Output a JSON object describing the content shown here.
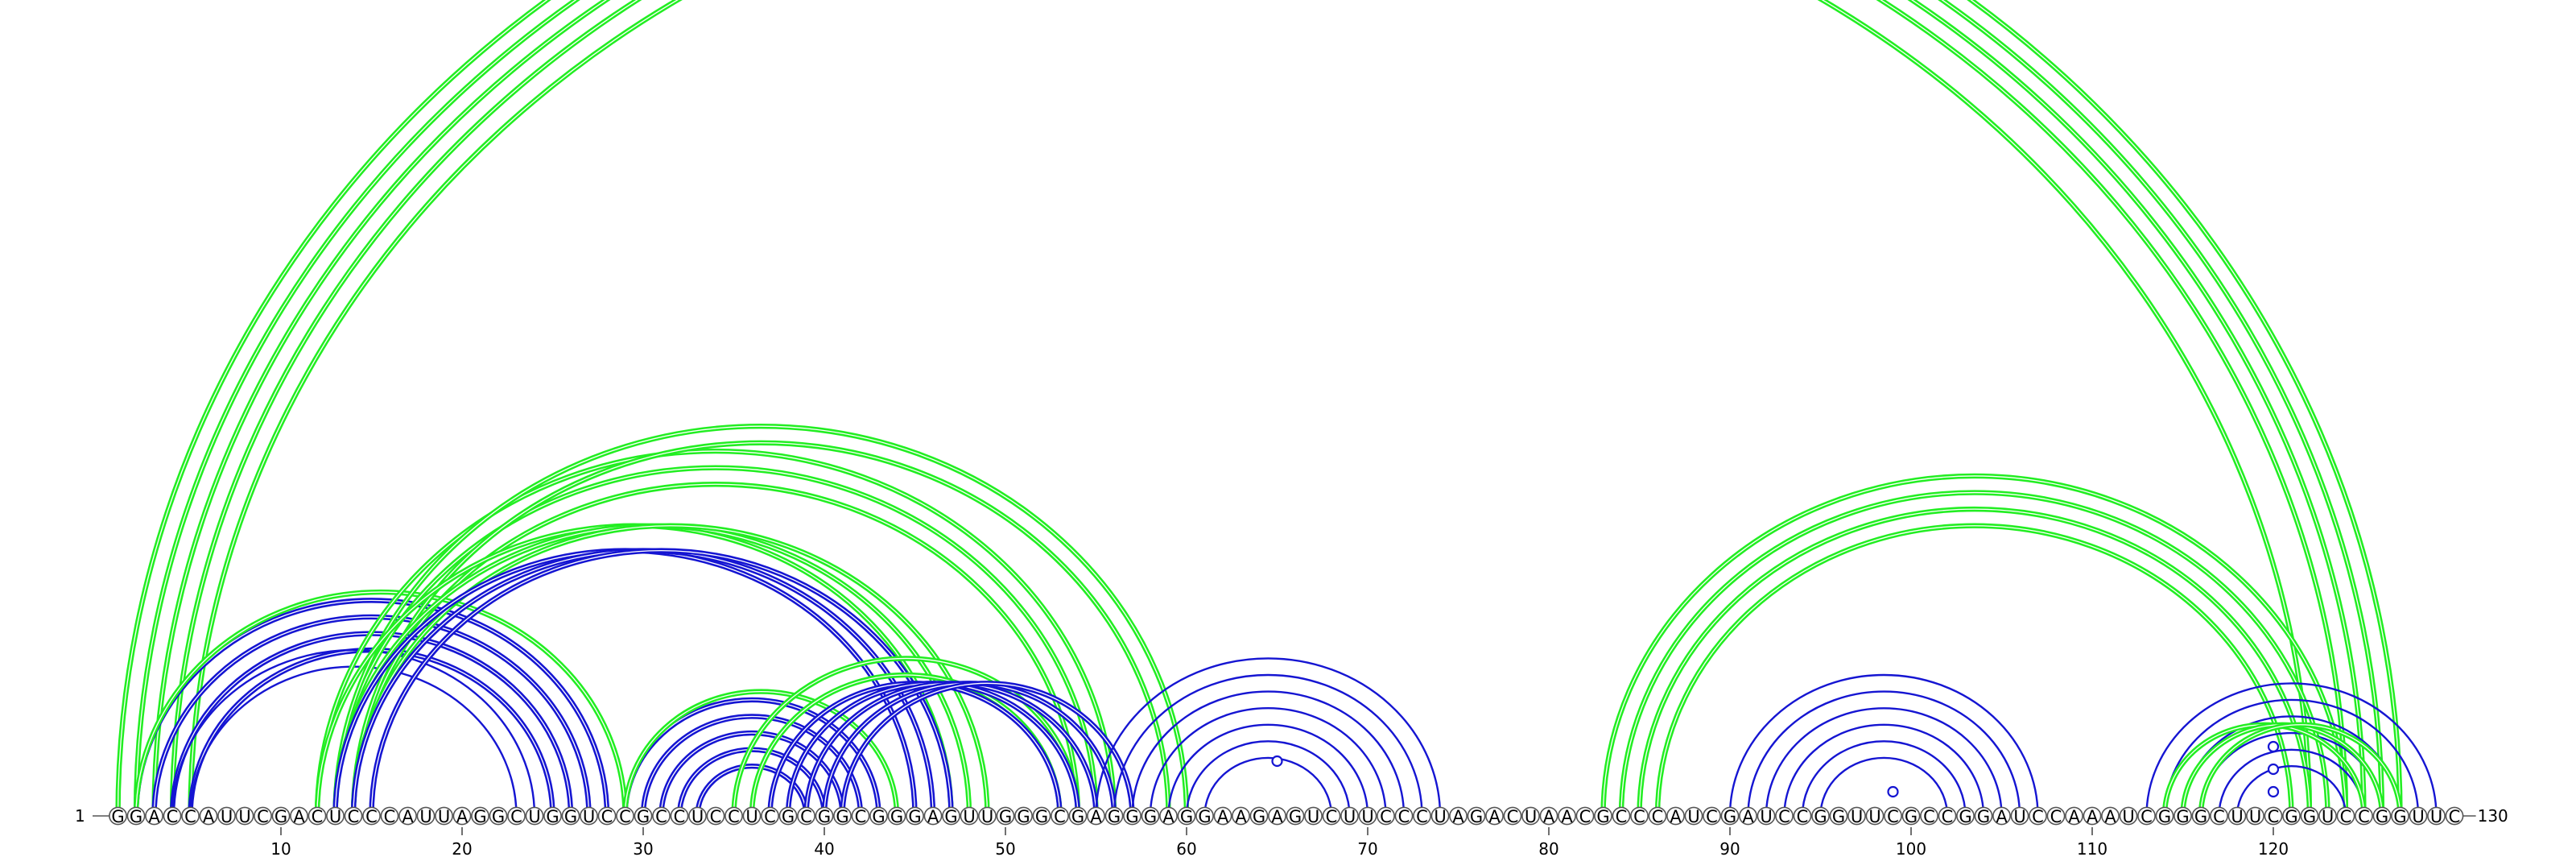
{
  "sequence": {
    "bases": "GGACCAUUCGACUCCCAUUAGGCUGGUCCGCCUCCUCGCGGCGGGAGUUGGGCGAGGGAGGAAGAGUCUUCCCUAGACUAACGCCCAUCGAUCCGGUUCGCCGGAUCCAAAUCGGGCUUCGGUCCGGUUC",
    "start_label": "1",
    "end_label": "130",
    "tick_labels": [
      "10",
      "20",
      "30",
      "40",
      "50",
      "60",
      "70",
      "80",
      "90",
      "100",
      "110",
      "120"
    ],
    "tick_positions": [
      10,
      20,
      30,
      40,
      50,
      60,
      70,
      80,
      90,
      100,
      110,
      120
    ]
  },
  "colors": {
    "green": "#22ee22",
    "blue": "#1515d2",
    "backbone": "#555555"
  },
  "arc_groups": [
    {
      "color": "green",
      "i": 1,
      "j": 127,
      "n": 4,
      "dir": 1,
      "double": true
    },
    {
      "color": "green",
      "i": 5,
      "j": 122,
      "n": 1,
      "dir": 1,
      "double": true
    },
    {
      "color": "blue",
      "i": 2,
      "j": 28,
      "n": 4,
      "dir": 1,
      "double": true
    },
    {
      "color": "blue",
      "i": 4,
      "j": 24,
      "n": 2,
      "dir": 1,
      "double": false
    },
    {
      "color": "green",
      "i": 2,
      "j": 29,
      "n": 1,
      "dir": 1,
      "double": true
    },
    {
      "color": "green",
      "i": 12,
      "j": 56,
      "n": 3,
      "dir": 1,
      "double": true
    },
    {
      "color": "green",
      "i": 13,
      "j": 60,
      "n": 2,
      "dir": 1,
      "double": true
    },
    {
      "color": "green",
      "i": 12,
      "j": 47,
      "n": 3,
      "dir": -1,
      "double": true
    },
    {
      "color": "blue",
      "i": 13,
      "j": 45,
      "n": 3,
      "dir": -1,
      "double": true
    },
    {
      "color": "blue",
      "i": 29,
      "j": 43,
      "n": 5,
      "dir": 1,
      "double": true
    },
    {
      "color": "green",
      "i": 29,
      "j": 44,
      "n": 1,
      "dir": 1,
      "double": true
    },
    {
      "color": "green",
      "i": 35,
      "j": 54,
      "n": 2,
      "dir": 1,
      "double": true
    },
    {
      "color": "blue",
      "i": 37,
      "j": 53,
      "n": 5,
      "dir": -1,
      "double": true
    },
    {
      "color": "blue",
      "i": 55,
      "j": 74,
      "n": 7,
      "dir": 1,
      "double": false
    },
    {
      "color": "green",
      "i": 83,
      "j": 124,
      "n": 4,
      "dir": 1,
      "double": true
    },
    {
      "color": "blue",
      "i": 90,
      "j": 107,
      "n": 6,
      "dir": 1,
      "double": false
    },
    {
      "color": "blue",
      "i": 113,
      "j": 129,
      "n": 6,
      "dir": 1,
      "double": false
    },
    {
      "color": "green",
      "i": 114,
      "j": 125,
      "n": 3,
      "dir": -1,
      "double": true
    }
  ],
  "loop_marks": [
    {
      "pos": 65,
      "level": 0.68
    },
    {
      "pos": 99,
      "level": 0.3
    },
    {
      "pos": 120,
      "level": 0.58
    },
    {
      "pos": 120,
      "level": 0.86
    },
    {
      "pos": 120,
      "level": 0.3
    }
  ]
}
